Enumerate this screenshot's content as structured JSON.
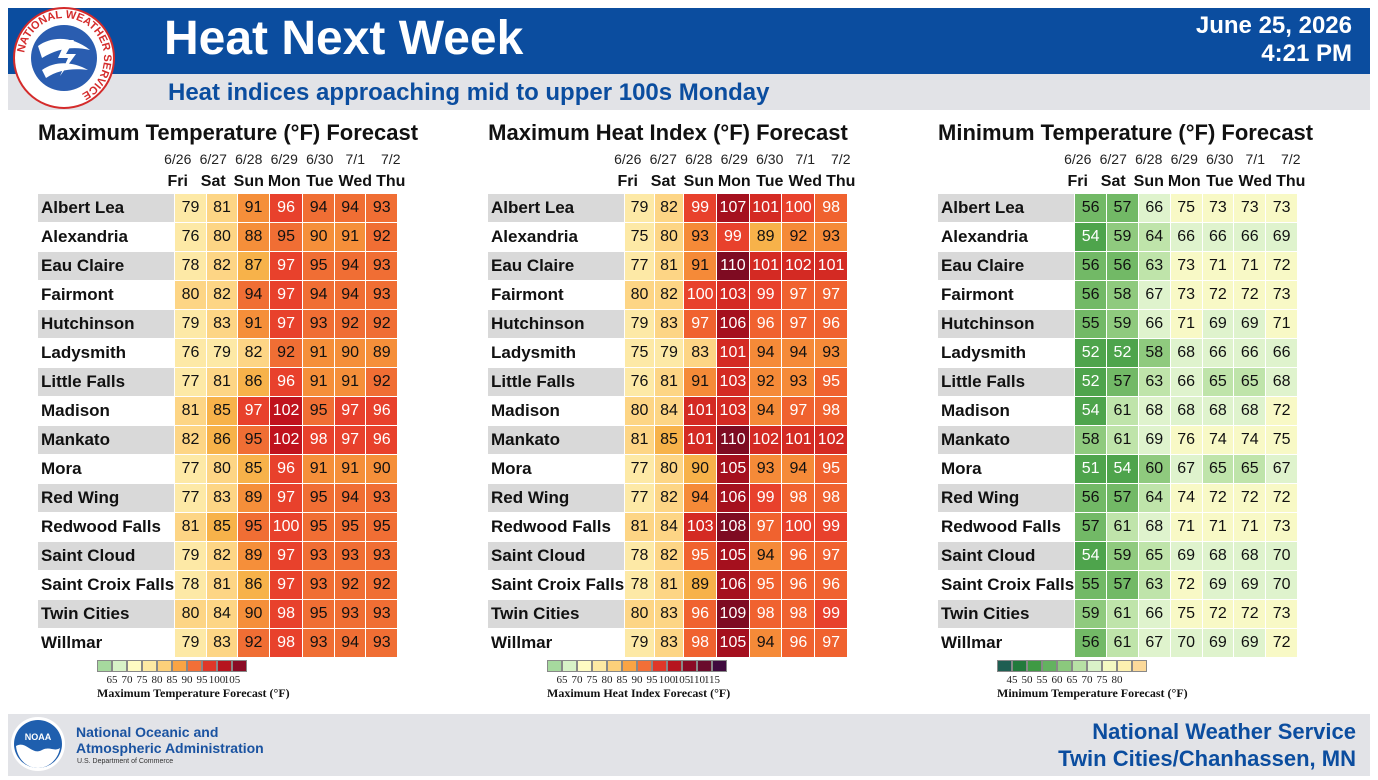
{
  "header": {
    "title": "Heat Next Week",
    "date": "June 25, 2026",
    "time": "4:21 PM",
    "subtitle": "Heat indices approaching mid to upper 100s Monday",
    "logo_text": "NATIONAL WEATHER SERVICE"
  },
  "columns": {
    "dates": [
      "6/26",
      "6/27",
      "6/28",
      "6/29",
      "6/30",
      "7/1",
      "7/2"
    ],
    "days": [
      "Fri",
      "Sat",
      "Sun",
      "Mon",
      "Tue",
      "Wed",
      "Thu"
    ]
  },
  "cities": [
    "Albert Lea",
    "Alexandria",
    "Eau Claire",
    "Fairmont",
    "Hutchinson",
    "Ladysmith",
    "Little Falls",
    "Madison",
    "Mankato",
    "Mora",
    "Red Wing",
    "Redwood Falls",
    "Saint Cloud",
    "Saint Croix Falls",
    "Twin Cities",
    "Willmar"
  ],
  "panels": [
    {
      "title": "Maximum Temperature (°F) Forecast",
      "legend_title": "Maximum Temperature Forecast (°F)",
      "legend_ticks": [
        "65",
        "70",
        "75",
        "80",
        "85",
        "90",
        "95",
        "100",
        "105"
      ],
      "legend_colors": [
        "#a6d99e",
        "#d8f2c7",
        "#fefbc3",
        "#fde9a3",
        "#fcd07a",
        "#f9a444",
        "#f26f37",
        "#df3729",
        "#b6141f",
        "#8a0b25"
      ],
      "rows": [
        [
          79,
          81,
          91,
          96,
          94,
          94,
          93
        ],
        [
          76,
          80,
          88,
          95,
          90,
          91,
          92
        ],
        [
          78,
          82,
          87,
          97,
          95,
          94,
          93
        ],
        [
          80,
          82,
          94,
          97,
          94,
          94,
          93
        ],
        [
          79,
          83,
          91,
          97,
          93,
          92,
          92
        ],
        [
          76,
          79,
          82,
          92,
          91,
          90,
          89
        ],
        [
          77,
          81,
          86,
          96,
          91,
          91,
          92
        ],
        [
          81,
          85,
          97,
          102,
          95,
          97,
          96
        ],
        [
          82,
          86,
          95,
          102,
          98,
          97,
          96
        ],
        [
          77,
          80,
          85,
          96,
          91,
          91,
          90
        ],
        [
          77,
          83,
          89,
          97,
          95,
          94,
          93
        ],
        [
          81,
          85,
          95,
          100,
          95,
          95,
          95
        ],
        [
          79,
          82,
          89,
          97,
          93,
          93,
          93
        ],
        [
          78,
          81,
          86,
          97,
          93,
          92,
          92
        ],
        [
          80,
          84,
          90,
          98,
          95,
          93,
          93
        ],
        [
          79,
          83,
          92,
          98,
          93,
          94,
          93
        ]
      ]
    },
    {
      "title": "Maximum Heat Index (°F) Forecast",
      "legend_title": "Maximum Heat Index Forecast (°F)",
      "legend_ticks": [
        "65",
        "70",
        "75",
        "80",
        "85",
        "90",
        "95",
        "100",
        "105",
        "110",
        "115"
      ],
      "legend_colors": [
        "#a6d99e",
        "#d8f2c7",
        "#fefbc3",
        "#fde9a3",
        "#fcd07a",
        "#f9a444",
        "#f26f37",
        "#df3729",
        "#b6141f",
        "#8a0b25",
        "#6a0c2c",
        "#3f0a3d"
      ],
      "rows": [
        [
          79,
          82,
          99,
          107,
          101,
          100,
          98
        ],
        [
          75,
          80,
          93,
          99,
          89,
          92,
          93
        ],
        [
          77,
          81,
          91,
          110,
          101,
          102,
          101
        ],
        [
          80,
          82,
          100,
          103,
          99,
          97,
          97
        ],
        [
          79,
          83,
          97,
          106,
          96,
          97,
          96
        ],
        [
          75,
          79,
          83,
          101,
          94,
          94,
          93
        ],
        [
          76,
          81,
          91,
          103,
          92,
          93,
          95
        ],
        [
          80,
          84,
          101,
          103,
          94,
          97,
          98
        ],
        [
          81,
          85,
          101,
          110,
          102,
          101,
          102
        ],
        [
          77,
          80,
          90,
          105,
          93,
          94,
          95
        ],
        [
          77,
          82,
          94,
          106,
          99,
          98,
          98
        ],
        [
          81,
          84,
          103,
          108,
          97,
          100,
          99
        ],
        [
          78,
          82,
          95,
          105,
          94,
          96,
          97
        ],
        [
          78,
          81,
          89,
          106,
          95,
          96,
          96
        ],
        [
          80,
          83,
          96,
          109,
          98,
          98,
          99
        ],
        [
          79,
          83,
          98,
          105,
          94,
          96,
          97
        ]
      ]
    },
    {
      "title": "Minimum Temperature (°F) Forecast",
      "legend_title": "Minimum Temperature Forecast (°F)",
      "legend_ticks": [
        "45",
        "50",
        "55",
        "60",
        "65",
        "70",
        "75",
        "80"
      ],
      "legend_colors": [
        "#1f5e52",
        "#237a3c",
        "#3f9a44",
        "#63b260",
        "#8bc97d",
        "#b7e0a5",
        "#daf2c8",
        "#f4f8c2",
        "#fdf1b0",
        "#fbd99a"
      ],
      "rows": [
        [
          56,
          57,
          66,
          75,
          73,
          73,
          73
        ],
        [
          54,
          59,
          64,
          66,
          66,
          66,
          69
        ],
        [
          56,
          56,
          63,
          73,
          71,
          71,
          72
        ],
        [
          56,
          58,
          67,
          73,
          72,
          72,
          73
        ],
        [
          55,
          59,
          66,
          71,
          69,
          69,
          71
        ],
        [
          52,
          52,
          58,
          68,
          66,
          66,
          66
        ],
        [
          52,
          57,
          63,
          66,
          65,
          65,
          68
        ],
        [
          54,
          61,
          68,
          68,
          68,
          68,
          72
        ],
        [
          58,
          61,
          69,
          76,
          74,
          74,
          75
        ],
        [
          51,
          54,
          60,
          67,
          65,
          65,
          67
        ],
        [
          56,
          57,
          64,
          74,
          72,
          72,
          72
        ],
        [
          57,
          61,
          68,
          71,
          71,
          71,
          73
        ],
        [
          54,
          59,
          65,
          69,
          68,
          68,
          70
        ],
        [
          55,
          57,
          63,
          72,
          69,
          69,
          70
        ],
        [
          59,
          61,
          66,
          75,
          72,
          72,
          73
        ],
        [
          56,
          61,
          67,
          70,
          69,
          69,
          72
        ]
      ]
    }
  ],
  "footer": {
    "noaa_name_line1": "National Oceanic and",
    "noaa_name_line2": "Atmospheric Administration",
    "noaa_dept": "U.S. Department of Commerce",
    "noaa_logo_text": "NOAA",
    "office_line1": "National Weather Service",
    "office_line2": "Twin Cities/Chanhassen, MN"
  }
}
